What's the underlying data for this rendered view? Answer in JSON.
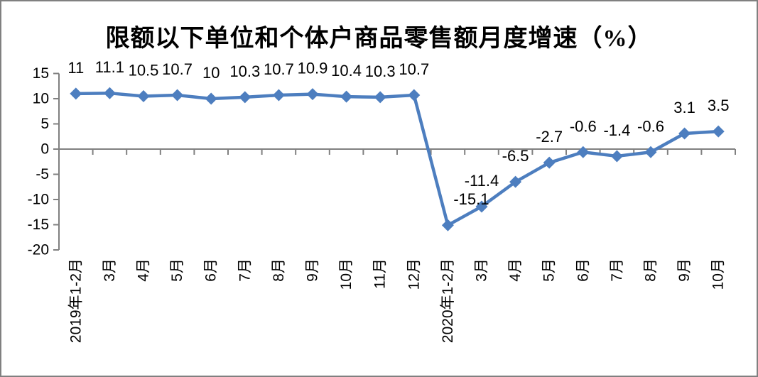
{
  "window": {
    "background_color": "#ffffff",
    "border_color": "#808080"
  },
  "chart_data": {
    "type": "line",
    "title": "限额以下单位和个体户商品零售额月度增速（%）",
    "categories": [
      "2019年1-2月",
      "3月",
      "4月",
      "5月",
      "6月",
      "7月",
      "8月",
      "9月",
      "10月",
      "11月",
      "12月",
      "2020年1-2月",
      "3月",
      "4月",
      "5月",
      "6月",
      "7月",
      "8月",
      "9月",
      "10月"
    ],
    "values": [
      11,
      11.1,
      10.5,
      10.7,
      10,
      10.3,
      10.7,
      10.9,
      10.4,
      10.3,
      10.7,
      -15.1,
      -11.4,
      -6.5,
      -2.7,
      -0.6,
      -1.4,
      -0.6,
      3.1,
      3.5
    ],
    "data_labels": [
      "11",
      "11.1",
      "10.5",
      "10.7",
      "10",
      "10.3",
      "10.7",
      "10.9",
      "10.4",
      "10.3",
      "10.7",
      "-15.1",
      "-11.4",
      "-6.5",
      "-2.7",
      "-0.6",
      "-1.4",
      "-0.6",
      "3.1",
      "3.5"
    ],
    "data_label_offsets_x": [
      0,
      0,
      0,
      0,
      0,
      0,
      0,
      0,
      0,
      0,
      0,
      33,
      0,
      0,
      0,
      0,
      0,
      0,
      0,
      0
    ],
    "y_ticks": [
      15,
      10,
      5,
      0,
      -5,
      -10,
      -15,
      -20
    ],
    "ylim": [
      -20,
      15
    ],
    "xlabel": "",
    "ylabel": "",
    "grid": false,
    "legend": "none",
    "marker": "diamond",
    "line_color": "#4d7ebf",
    "axis_color": "#808080",
    "text_color": "#000000"
  }
}
